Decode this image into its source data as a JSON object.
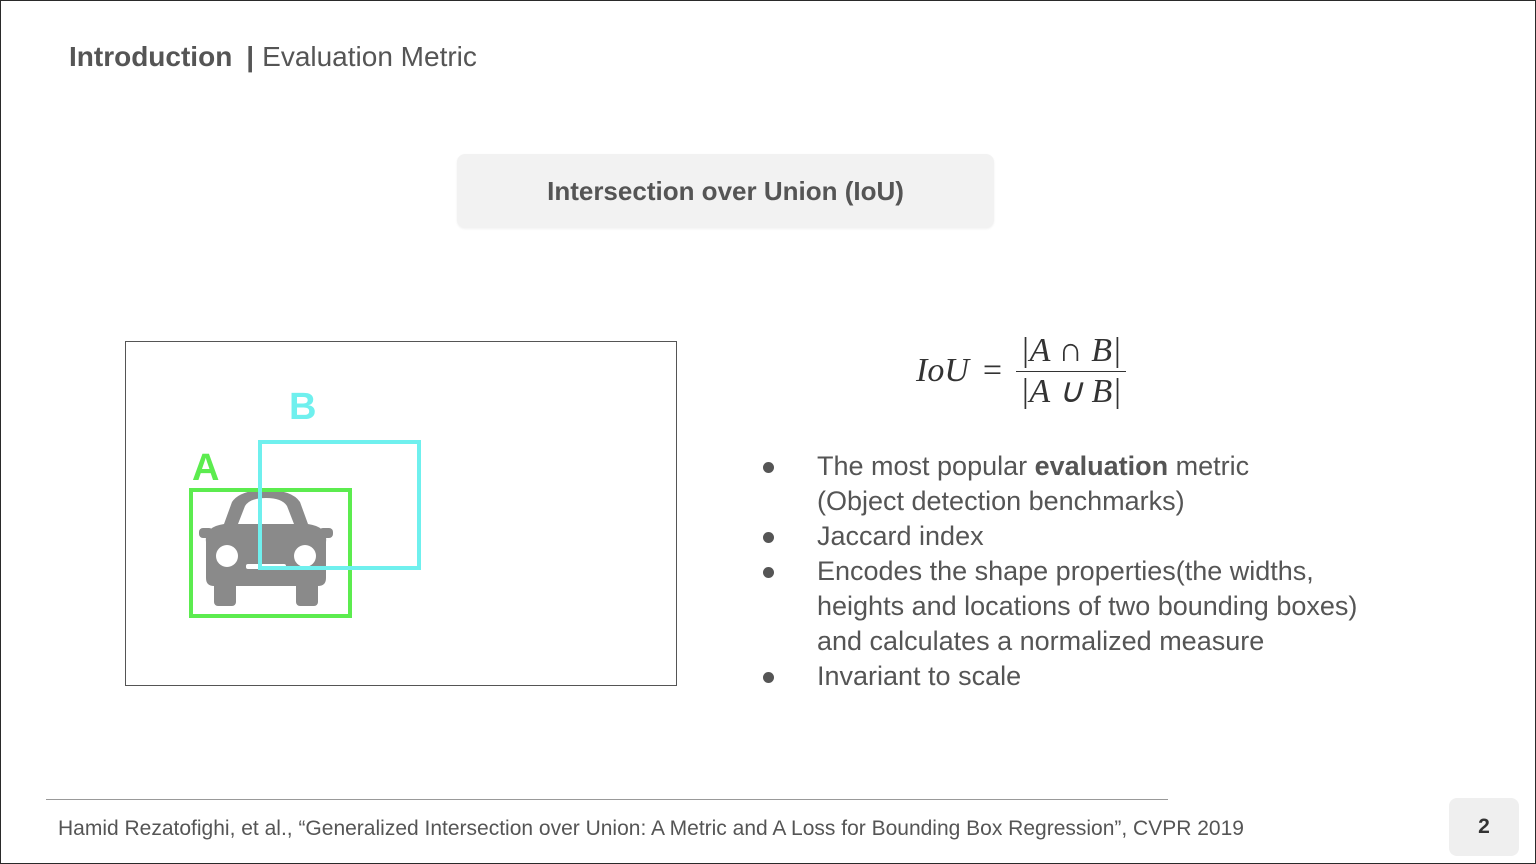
{
  "header": {
    "section": "Introduction",
    "separator": "|",
    "subtitle": "Evaluation Metric"
  },
  "title_box": {
    "text": "Intersection over Union (IoU)"
  },
  "figure": {
    "label_a": "A",
    "label_b": "B",
    "box_a_color": "#5cec4f",
    "box_b_color": "#6ff0ee",
    "car_color": "#8a8a8a",
    "icon": "car-icon"
  },
  "formula": {
    "lhs": "IoU",
    "equals": "=",
    "numerator": "|A ∩ B|",
    "denominator": "|A ∪ B|"
  },
  "bullets": [
    {
      "before": "The most popular ",
      "bold": "evaluation",
      "after": " metric",
      "line2": "(Object detection benchmarks)"
    },
    {
      "text": "Jaccard index"
    },
    {
      "line1": "Encodes the shape properties(the widths,",
      "line2": "heights and locations of two bounding boxes)",
      "line3": "and calculates a normalized measure"
    },
    {
      "text": "Invariant to scale"
    }
  ],
  "footer": {
    "citation": "Hamid Rezatofighi, et al., “Generalized Intersection over Union: A Metric and A Loss for Bounding Box Regression”, CVPR 2019",
    "page_number": "2"
  }
}
